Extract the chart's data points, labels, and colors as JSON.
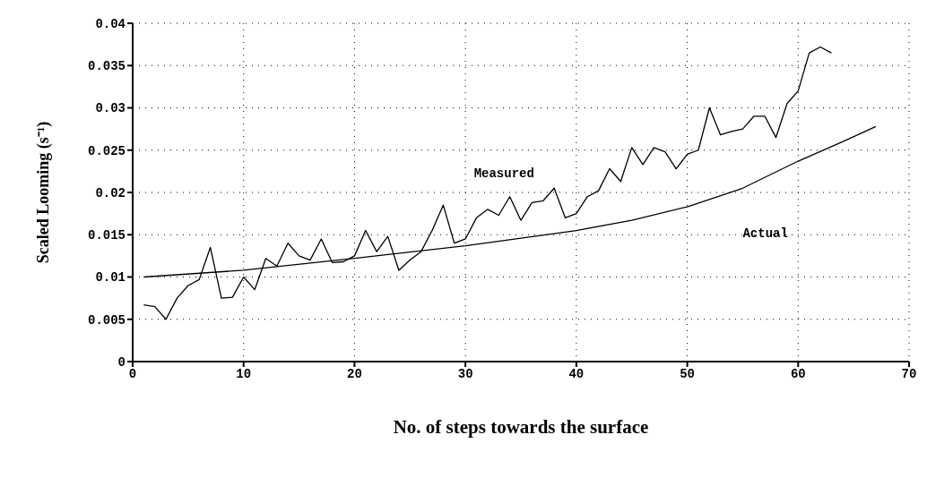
{
  "chart_data": {
    "type": "line",
    "xlabel": "No. of steps towards the surface",
    "ylabel": "Scaled Looming (s⁻¹)",
    "xlim": [
      0,
      70
    ],
    "xticks": [
      0,
      10,
      20,
      30,
      40,
      50,
      60,
      70
    ],
    "ylim": [
      0,
      0.04
    ],
    "yticks": [
      0,
      0.005,
      0.01,
      0.015,
      0.02,
      0.025,
      0.03,
      0.035,
      0.04
    ],
    "grid": true,
    "series": [
      {
        "name": "Measured",
        "color": "#000000",
        "x": [
          1,
          2,
          3,
          4,
          5,
          6,
          7,
          8,
          9,
          10,
          11,
          12,
          13,
          14,
          15,
          16,
          17,
          18,
          19,
          20,
          21,
          22,
          23,
          24,
          25,
          26,
          27,
          28,
          29,
          30,
          31,
          32,
          33,
          34,
          35,
          36,
          37,
          38,
          39,
          40,
          41,
          42,
          43,
          44,
          45,
          46,
          47,
          48,
          49,
          50,
          51,
          52,
          53,
          54,
          55,
          56,
          57,
          58,
          59,
          60,
          61,
          62,
          63
        ],
        "values": [
          0.0067,
          0.0065,
          0.005,
          0.0075,
          0.009,
          0.0097,
          0.0135,
          0.0075,
          0.0076,
          0.01,
          0.0085,
          0.0122,
          0.0113,
          0.014,
          0.0125,
          0.012,
          0.0145,
          0.0117,
          0.0118,
          0.0125,
          0.0155,
          0.013,
          0.0148,
          0.0108,
          0.012,
          0.013,
          0.0155,
          0.0185,
          0.014,
          0.0145,
          0.017,
          0.018,
          0.0173,
          0.0195,
          0.0167,
          0.0188,
          0.019,
          0.0205,
          0.017,
          0.0175,
          0.0195,
          0.0202,
          0.0228,
          0.0213,
          0.0253,
          0.0233,
          0.0253,
          0.0248,
          0.0228,
          0.0245,
          0.025,
          0.03,
          0.0268,
          0.0272,
          0.0275,
          0.029,
          0.029,
          0.0265,
          0.0305,
          0.032,
          0.0365,
          0.0372,
          0.0365
        ]
      },
      {
        "name": "Actual",
        "color": "#000000",
        "x": [
          1,
          10,
          20,
          30,
          40,
          45,
          50,
          55,
          60,
          64,
          67
        ],
        "values": [
          0.01,
          0.0108,
          0.0122,
          0.0137,
          0.0155,
          0.0167,
          0.0183,
          0.0205,
          0.0237,
          0.026,
          0.0278
        ]
      }
    ]
  }
}
